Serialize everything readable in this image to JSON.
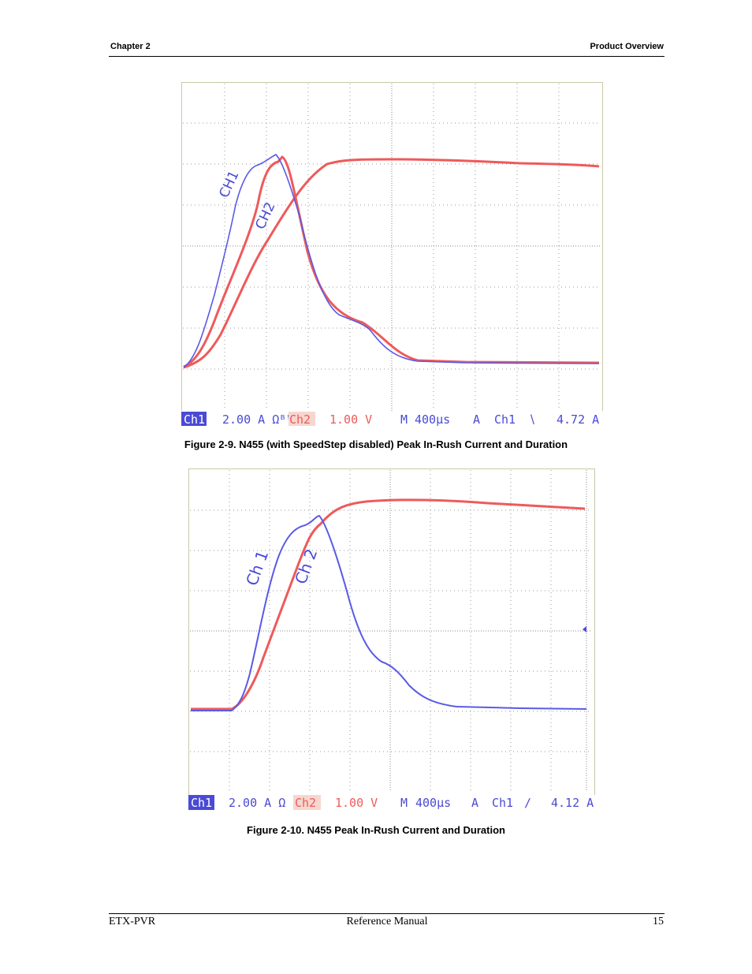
{
  "header": {
    "chapter": "Chapter 2",
    "section": "Product Overview"
  },
  "figures": [
    {
      "caption": "Figure  2-9.   N455 (with SpeedStep disabled) Peak In-Rush Current and Duration",
      "labels": {
        "ch1": "CH1",
        "ch2": "CH2"
      },
      "status": {
        "ch1_tag": "Ch1",
        "ch1_scale": "2.00 A Ωᴮᵂ",
        "ch2_tag": "Ch2",
        "ch2_scale": "1.00 V",
        "m_tag": "M",
        "timebase": "400μs",
        "a_tag": "A",
        "trig_src": "Ch1",
        "trig_slope": "∖",
        "trig_level": "4.72 A"
      },
      "colors": {
        "ch1": "#5a5ae6",
        "ch2": "#ee5a5a"
      }
    },
    {
      "caption": "Figure  2-10.   N455 Peak In-Rush Current and Duration",
      "labels": {
        "ch1": "Ch 1",
        "ch2": "Ch 2"
      },
      "status": {
        "ch1_tag": "Ch1",
        "ch1_scale": "2.00 A Ω",
        "ch2_tag": "Ch2",
        "ch2_scale": "1.00 V",
        "m_tag": "M",
        "timebase": "400μs",
        "a_tag": "A",
        "trig_src": "Ch1",
        "trig_slope": "∕",
        "trig_level": "4.12 A"
      },
      "colors": {
        "ch1": "#5a5ae6",
        "ch2": "#ee5a5a"
      }
    }
  ],
  "footer": {
    "left": "ETX-PVR",
    "center": "Reference Manual",
    "right": "15"
  }
}
